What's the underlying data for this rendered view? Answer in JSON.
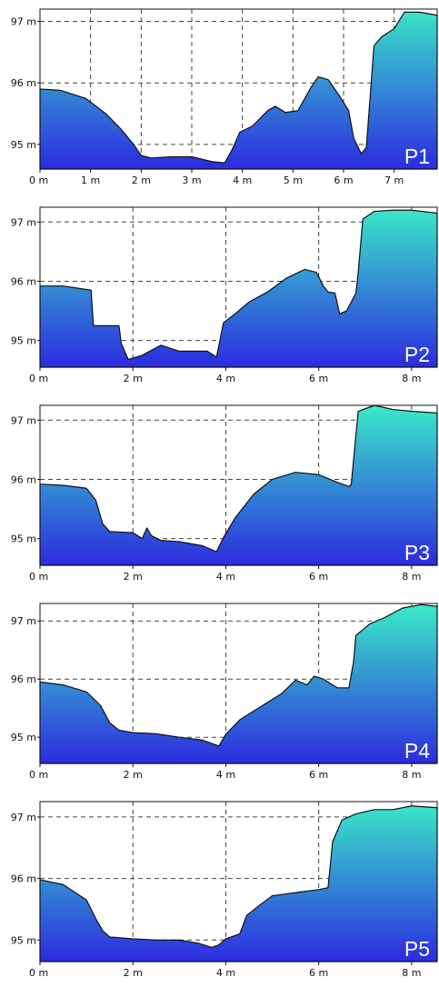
{
  "colors": {
    "fill_low": "#2c2be0",
    "fill_high": "#3ae6c8",
    "outline": "#111111",
    "grid": "#444444"
  },
  "chart_data": [
    {
      "type": "area",
      "panel_label": "P1",
      "xlim": [
        0,
        7.85
      ],
      "ylim": [
        94.6,
        97.2
      ],
      "xticks": [
        0,
        1,
        2,
        3,
        4,
        5,
        6,
        7
      ],
      "xtick_labels": [
        "0 m",
        "1 m",
        "2 m",
        "3 m",
        "4 m",
        "5 m",
        "6 m",
        "7 m"
      ],
      "yticks": [
        95,
        96,
        97
      ],
      "ytick_labels": [
        "95 m",
        "96 m",
        "97 m"
      ],
      "grid": true,
      "x": [
        0,
        0.4,
        0.9,
        1.3,
        1.6,
        1.85,
        2.0,
        2.2,
        2.6,
        3.0,
        3.4,
        3.65,
        3.8,
        3.95,
        4.2,
        4.5,
        4.65,
        4.85,
        5.1,
        5.35,
        5.5,
        5.7,
        5.95,
        6.1,
        6.2,
        6.35,
        6.45,
        6.6,
        6.75,
        7.0,
        7.2,
        7.5,
        7.85
      ],
      "y": [
        95.9,
        95.88,
        95.75,
        95.5,
        95.25,
        95.0,
        94.82,
        94.78,
        94.8,
        94.8,
        94.72,
        94.7,
        94.92,
        95.2,
        95.3,
        95.55,
        95.62,
        95.52,
        95.55,
        95.92,
        96.1,
        96.05,
        95.75,
        95.55,
        95.1,
        94.85,
        94.95,
        96.6,
        96.75,
        96.88,
        97.15,
        97.15,
        97.1
      ]
    },
    {
      "type": "area",
      "panel_label": "P2",
      "xlim": [
        0,
        8.55
      ],
      "ylim": [
        94.55,
        97.25
      ],
      "xticks": [
        0,
        2,
        4,
        6,
        8
      ],
      "xtick_labels": [
        "0 m",
        "2 m",
        "4 m",
        "6 m",
        "8 m"
      ],
      "yticks": [
        95,
        96,
        97
      ],
      "ytick_labels": [
        "95 m",
        "96 m",
        "97 m"
      ],
      "grid": true,
      "x": [
        0,
        0.5,
        1.1,
        1.15,
        1.3,
        1.7,
        1.75,
        1.9,
        2.2,
        2.6,
        3.0,
        3.6,
        3.8,
        3.95,
        4.2,
        4.5,
        4.9,
        5.3,
        5.7,
        5.95,
        6.1,
        6.2,
        6.35,
        6.45,
        6.6,
        6.8,
        6.85,
        6.95,
        7.2,
        7.6,
        8.0,
        8.55
      ],
      "y": [
        95.92,
        95.92,
        95.85,
        95.25,
        95.25,
        95.25,
        94.95,
        94.68,
        94.75,
        94.92,
        94.82,
        94.82,
        94.72,
        95.3,
        95.45,
        95.65,
        95.82,
        96.05,
        96.2,
        96.15,
        95.92,
        95.82,
        95.8,
        95.45,
        95.5,
        95.8,
        96.15,
        97.05,
        97.18,
        97.2,
        97.2,
        97.15
      ]
    },
    {
      "type": "area",
      "panel_label": "P3",
      "xlim": [
        0,
        8.55
      ],
      "ylim": [
        94.55,
        97.25
      ],
      "xticks": [
        0,
        2,
        4,
        6,
        8
      ],
      "xtick_labels": [
        "0 m",
        "2 m",
        "4 m",
        "6 m",
        "8 m"
      ],
      "yticks": [
        95,
        96,
        97
      ],
      "ytick_labels": [
        "95 m",
        "96 m",
        "97 m"
      ],
      "grid": true,
      "x": [
        0,
        0.5,
        1.0,
        1.2,
        1.35,
        1.5,
        2.0,
        2.2,
        2.3,
        2.4,
        2.6,
        3.0,
        3.5,
        3.8,
        3.95,
        4.2,
        4.6,
        5.0,
        5.5,
        6.0,
        6.4,
        6.65,
        6.7,
        6.85,
        7.2,
        7.6,
        8.0,
        8.55
      ],
      "y": [
        95.92,
        95.9,
        95.85,
        95.65,
        95.25,
        95.12,
        95.1,
        95.0,
        95.18,
        95.05,
        94.97,
        94.95,
        94.88,
        94.78,
        95.02,
        95.35,
        95.75,
        96.0,
        96.12,
        96.08,
        95.95,
        95.88,
        95.92,
        97.15,
        97.25,
        97.18,
        97.15,
        97.12
      ]
    },
    {
      "type": "area",
      "panel_label": "P4",
      "xlim": [
        0,
        8.55
      ],
      "ylim": [
        94.55,
        97.3
      ],
      "xticks": [
        0,
        2,
        4,
        6,
        8
      ],
      "xtick_labels": [
        "0 m",
        "2 m",
        "4 m",
        "6 m",
        "8 m"
      ],
      "yticks": [
        95,
        96,
        97
      ],
      "ytick_labels": [
        "95 m",
        "96 m",
        "97 m"
      ],
      "grid": true,
      "x": [
        0,
        0.5,
        1.0,
        1.3,
        1.5,
        1.7,
        2.0,
        2.5,
        3.0,
        3.5,
        3.85,
        4.0,
        4.3,
        4.8,
        5.2,
        5.5,
        5.75,
        5.9,
        6.1,
        6.4,
        6.65,
        6.75,
        6.8,
        7.1,
        7.4,
        7.8,
        8.2,
        8.55
      ],
      "y": [
        95.95,
        95.9,
        95.78,
        95.55,
        95.25,
        95.12,
        95.08,
        95.06,
        95.0,
        94.95,
        94.85,
        95.05,
        95.3,
        95.55,
        95.75,
        95.98,
        95.9,
        96.05,
        96.0,
        95.85,
        95.85,
        96.3,
        96.75,
        96.95,
        97.05,
        97.22,
        97.28,
        97.25
      ]
    },
    {
      "type": "area",
      "panel_label": "P5",
      "xlim": [
        0,
        8.55
      ],
      "ylim": [
        94.65,
        97.25
      ],
      "xticks": [
        0,
        2,
        4,
        6,
        8
      ],
      "xtick_labels": [
        "0 m",
        "2 m",
        "4 m",
        "6 m",
        "8 m"
      ],
      "yticks": [
        95,
        96,
        97
      ],
      "ytick_labels": [
        "95 m",
        "96 m",
        "97 m"
      ],
      "grid": true,
      "x": [
        0,
        0.5,
        1.0,
        1.2,
        1.35,
        1.5,
        2.0,
        2.5,
        3.0,
        3.4,
        3.7,
        3.85,
        4.0,
        4.3,
        4.45,
        4.7,
        5.0,
        5.3,
        5.6,
        6.0,
        6.2,
        6.3,
        6.5,
        6.8,
        7.2,
        7.6,
        8.0,
        8.55
      ],
      "y": [
        95.98,
        95.9,
        95.65,
        95.35,
        95.15,
        95.05,
        95.02,
        95.0,
        95.0,
        94.95,
        94.88,
        94.92,
        95.02,
        95.1,
        95.4,
        95.55,
        95.72,
        95.75,
        95.78,
        95.82,
        95.85,
        96.6,
        96.95,
        97.05,
        97.12,
        97.12,
        97.18,
        97.15
      ]
    }
  ]
}
